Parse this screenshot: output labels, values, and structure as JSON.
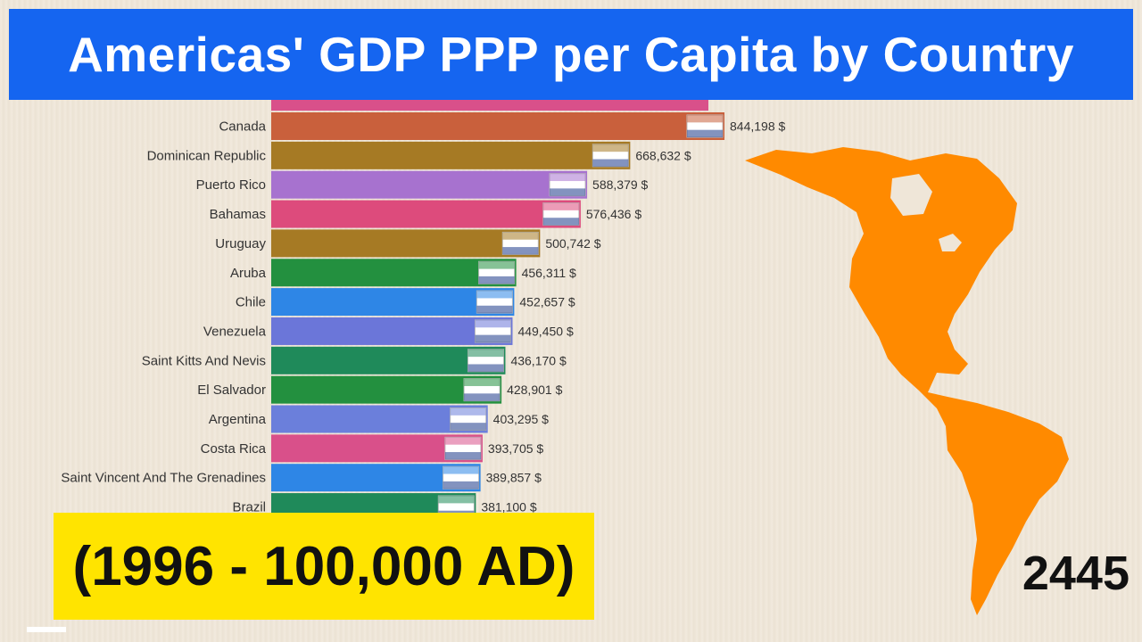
{
  "header": {
    "title": "Americas' GDP PPP per Capita by Country"
  },
  "subtitle_box": {
    "text": "(1996 - 100,000 AD)"
  },
  "year_label": "2445",
  "colors": {
    "title_bg": "#1565f0",
    "range_bg": "#ffe400",
    "map": "#ff8a00"
  },
  "chart_data": {
    "type": "bar",
    "orientation": "horizontal",
    "value_suffix": " $",
    "categories": [
      "Canada",
      "Dominican Republic",
      "Puerto Rico",
      "Bahamas",
      "Uruguay",
      "Aruba",
      "Chile",
      "Venezuela",
      "Saint Kitts And Nevis",
      "El Salvador",
      "Argentina",
      "Costa Rica",
      "Saint Vincent And The Grenadines",
      "Brazil"
    ],
    "values": [
      844198,
      668632,
      588379,
      576436,
      500742,
      456311,
      452657,
      449450,
      436170,
      428901,
      403295,
      393705,
      389857,
      381100
    ],
    "value_labels": [
      "844,198 $",
      "668,632 $",
      "588,379 $",
      "576,436 $",
      "500,742 $",
      "456,311 $",
      "452,657 $",
      "449,450 $",
      "436,170 $",
      "428,901 $",
      "403,295 $",
      "393,705 $",
      "389,857 $",
      "381,100 $"
    ],
    "bar_colors": [
      "#c9603c",
      "#a67a24",
      "#a772cf",
      "#dd4b7c",
      "#a67a24",
      "#23903f",
      "#2e86e6",
      "#6b76d9",
      "#1f8a5a",
      "#23903f",
      "#6b7fdb",
      "#d9508a",
      "#2e86e6",
      "#1f8a5a"
    ],
    "flags": [
      "canada-flag",
      "dominican-republic-flag",
      "puerto-rico-flag",
      "bahamas-flag",
      "uruguay-flag",
      "aruba-flag",
      "chile-flag",
      "venezuela-flag",
      "saint-kitts-and-nevis-flag",
      "el-salvador-flag",
      "argentina-flag",
      "costa-rica-flag",
      "saint-vincent-and-the-grenadines-flag",
      "brazil-flag"
    ],
    "partial_top_bar_color": "#d9508a",
    "map_icon": "americas-map-icon"
  }
}
